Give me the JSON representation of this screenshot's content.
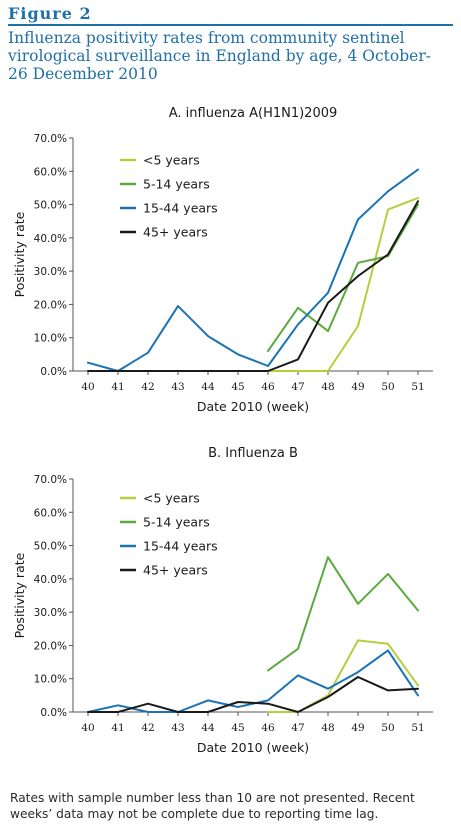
{
  "figure": {
    "label": "Figure 2",
    "title": "Influenza positivity rates from community sentinel virological surveillance in England by age, 4 October-26 December 2010"
  },
  "footnote": "Rates with sample number less than 10 are not presented. Recent weeks’ data may not be complete due to reporting time lag.",
  "colors": {
    "under5": "#b5cf3a",
    "age5_14": "#5aaa3c",
    "age15_44": "#1a73b5",
    "age45plus": "#1a1a1a",
    "figure_blue": "#1f6fa8"
  },
  "chart_data": [
    {
      "type": "line",
      "title": "A. influenza A(H1N1)2009",
      "xlabel": "Date 2010 (week)",
      "ylabel": "Positivity rate",
      "x": [
        40,
        41,
        42,
        43,
        44,
        45,
        46,
        47,
        48,
        49,
        50,
        51
      ],
      "ylim": [
        0,
        70
      ],
      "yticks": [
        "0.0%",
        "10.0%",
        "20.0%",
        "30.0%",
        "40.0%",
        "50.0%",
        "60.0%",
        "70.0%"
      ],
      "legend_position": "top-left",
      "series": [
        {
          "name": "<5 years",
          "color_key": "under5",
          "values": [
            null,
            null,
            null,
            null,
            null,
            null,
            0.0,
            0.0,
            0.0,
            13.5,
            48.5,
            52.0
          ]
        },
        {
          "name": "5-14 years",
          "color_key": "age5_14",
          "values": [
            null,
            null,
            null,
            null,
            null,
            null,
            6.0,
            19.0,
            12.0,
            32.5,
            34.5,
            50.0
          ]
        },
        {
          "name": "15-44 years",
          "color_key": "age15_44",
          "values": [
            2.5,
            0.0,
            5.5,
            19.5,
            10.5,
            5.0,
            1.5,
            14.0,
            23.5,
            45.5,
            54.0,
            60.5
          ]
        },
        {
          "name": "45+ years",
          "color_key": "age45plus",
          "values": [
            0.0,
            0.0,
            0.0,
            0.0,
            0.0,
            0.0,
            0.0,
            3.5,
            20.5,
            28.5,
            35.0,
            51.0
          ]
        }
      ]
    },
    {
      "type": "line",
      "title": "B. Influenza B",
      "xlabel": "Date 2010 (week)",
      "ylabel": "Positivity rate",
      "x": [
        40,
        41,
        42,
        43,
        44,
        45,
        46,
        47,
        48,
        49,
        50,
        51
      ],
      "ylim": [
        0,
        70
      ],
      "yticks": [
        "0.0%",
        "10.0%",
        "20.0%",
        "30.0%",
        "40.0%",
        "50.0%",
        "60.0%",
        "70.0%"
      ],
      "legend_position": "top-left",
      "series": [
        {
          "name": "<5 years",
          "color_key": "under5",
          "values": [
            null,
            null,
            null,
            null,
            null,
            null,
            0.0,
            0.0,
            5.0,
            21.5,
            20.5,
            8.0
          ]
        },
        {
          "name": "5-14 years",
          "color_key": "age5_14",
          "values": [
            null,
            null,
            null,
            null,
            null,
            null,
            12.5,
            19.0,
            46.5,
            32.5,
            41.5,
            30.5
          ]
        },
        {
          "name": "15-44 years",
          "color_key": "age15_44",
          "values": [
            0.0,
            2.0,
            0.0,
            0.0,
            3.5,
            1.5,
            3.5,
            11.0,
            7.0,
            12.0,
            18.5,
            5.0
          ]
        },
        {
          "name": "45+ years",
          "color_key": "age45plus",
          "values": [
            0.0,
            0.0,
            2.5,
            0.0,
            0.0,
            3.0,
            2.5,
            0.0,
            4.5,
            10.5,
            6.5,
            7.0
          ]
        }
      ]
    }
  ]
}
